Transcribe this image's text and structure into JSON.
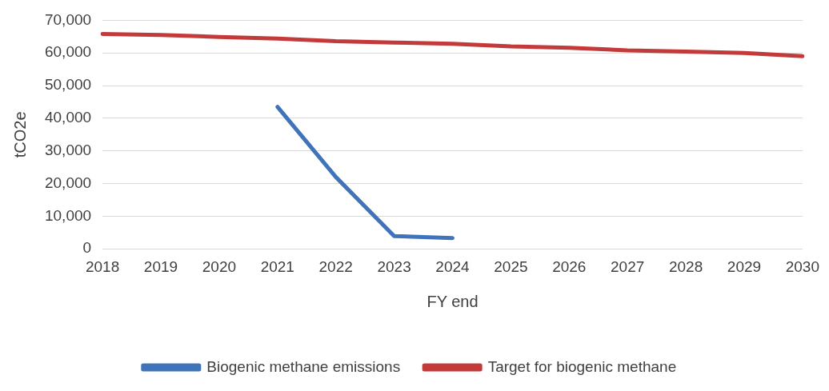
{
  "chart_data": {
    "type": "line",
    "xlabel": "FY end",
    "ylabel": "tCO2e",
    "categories": [
      "2018",
      "2019",
      "2020",
      "2021",
      "2022",
      "2023",
      "2024",
      "2025",
      "2026",
      "2027",
      "2028",
      "2029",
      "2030"
    ],
    "series": [
      {
        "name": "Biogenic methane emissions",
        "color": "#3f74ba",
        "values": [
          null,
          null,
          null,
          43500,
          22000,
          3900,
          3300,
          null,
          null,
          null,
          null,
          null,
          null
        ]
      },
      {
        "name": "Target for biogenic methane",
        "color": "#c23b3a",
        "values": [
          65800,
          65500,
          64900,
          64400,
          63600,
          63200,
          62800,
          62000,
          61600,
          60800,
          60400,
          60000,
          59000
        ]
      }
    ],
    "ylim": [
      0,
      70000
    ],
    "yticks": [
      {
        "value": 0,
        "label": "0"
      },
      {
        "value": 10000,
        "label": "10,000"
      },
      {
        "value": 20000,
        "label": "20,000"
      },
      {
        "value": 30000,
        "label": "30,000"
      },
      {
        "value": 40000,
        "label": "40,000"
      },
      {
        "value": 50000,
        "label": "50,000"
      },
      {
        "value": 60000,
        "label": "60,000"
      },
      {
        "value": 70000,
        "label": "70,000"
      }
    ],
    "grid": "y",
    "legend": "bottom",
    "marker": "none",
    "line_style": "solid"
  }
}
